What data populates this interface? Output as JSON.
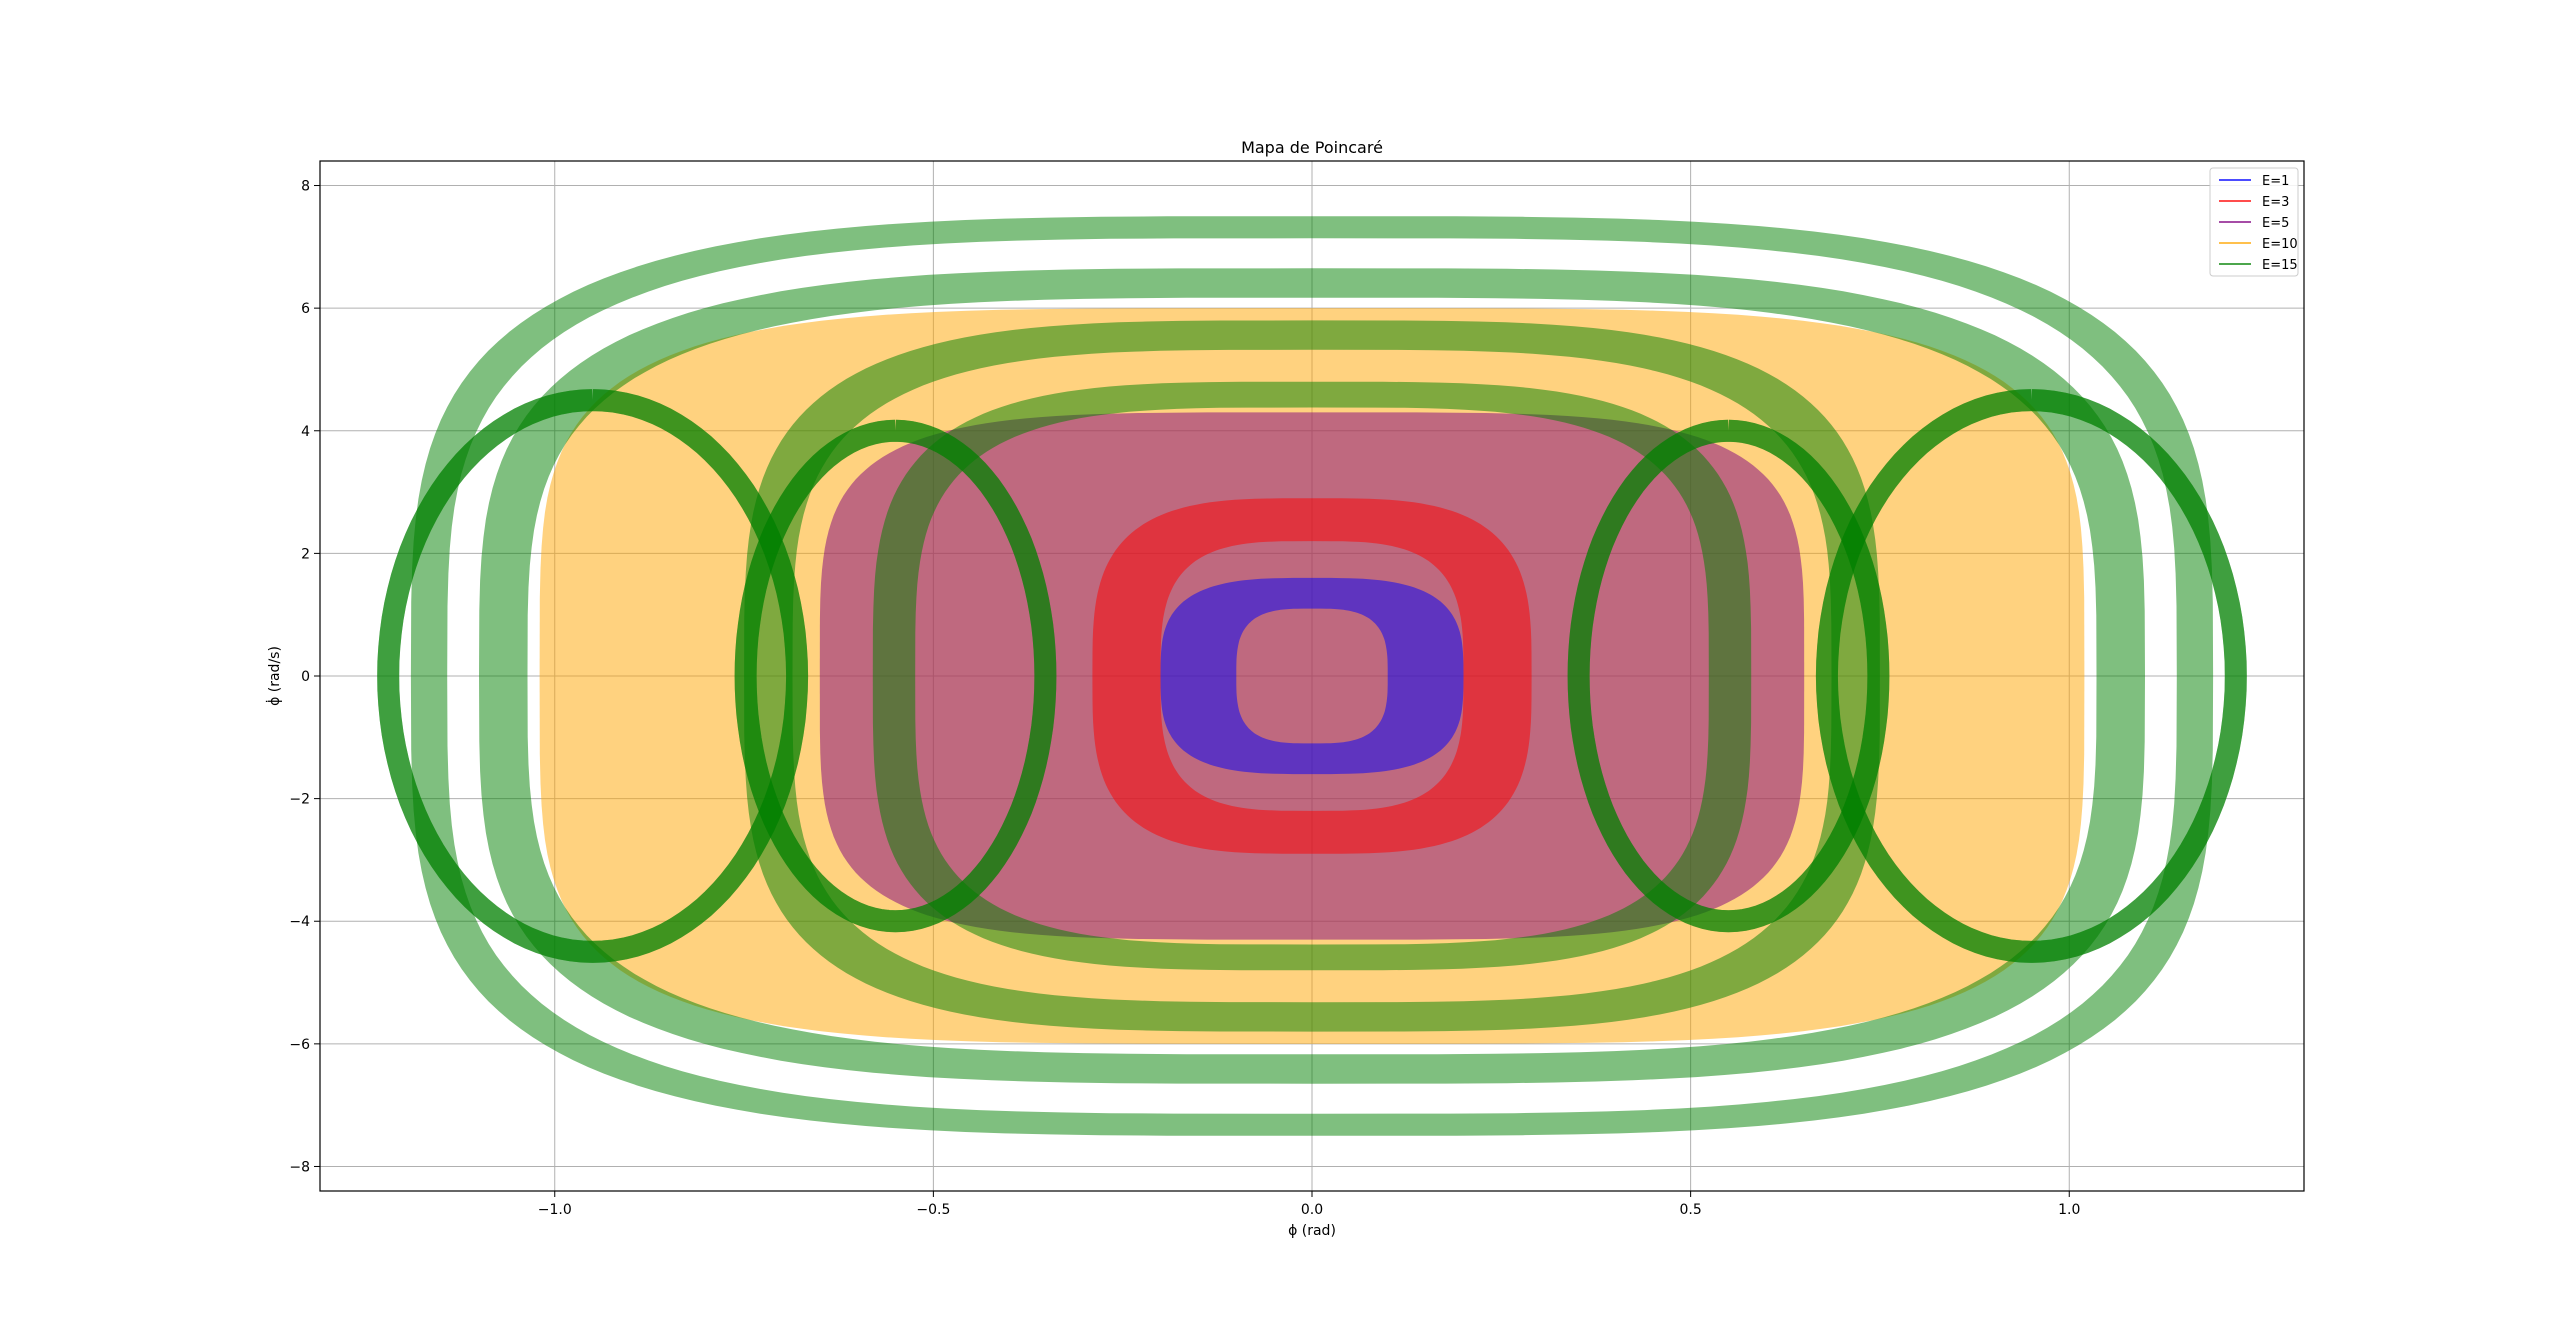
{
  "chart_data": {
    "type": "line",
    "title": "Mapa de Poincaré",
    "xlabel": "ϕ (rad)",
    "ylabel": "ϕ̇ (rad/s)",
    "xlim": [
      -1.31,
      1.31
    ],
    "ylim": [
      -8.4,
      8.4
    ],
    "xticks": [
      -1.0,
      -0.5,
      0.0,
      0.5,
      1.0
    ],
    "xtick_labels": [
      "−1.0",
      "−0.5",
      "0.0",
      "0.5",
      "1.0"
    ],
    "yticks": [
      -8,
      -6,
      -4,
      -2,
      0,
      2,
      4,
      6,
      8
    ],
    "ytick_labels": [
      "−8",
      "−6",
      "−4",
      "−2",
      "0",
      "2",
      "4",
      "6",
      "8"
    ],
    "grid": true,
    "legend_position": "top-right",
    "series": [
      {
        "name": "E=1",
        "color": "#0000ff",
        "alpha": 0.5,
        "band": {
          "inner": {
            "x_max": 0.1,
            "y_max": 1.1
          },
          "outer": {
            "x_max": 0.2,
            "y_max": 1.6
          },
          "squareness": 0.9
        }
      },
      {
        "name": "E=3",
        "color": "#ff0000",
        "alpha": 0.5,
        "band": {
          "inner": {
            "x_max": 0.2,
            "y_max": 2.2
          },
          "outer": {
            "x_max": 0.29,
            "y_max": 2.9
          },
          "squareness": 0.85
        }
      },
      {
        "name": "E=5",
        "color": "#800080",
        "alpha": 0.5,
        "band": {
          "inner": {
            "x_max": 0.0,
            "y_max": 0.0
          },
          "outer": {
            "x_max": 0.65,
            "y_max": 4.3
          },
          "squareness": 0.6
        }
      },
      {
        "name": "E=10",
        "color": "#ffa500",
        "alpha": 0.5,
        "band": {
          "inner": {
            "x_max": 0.0,
            "y_max": 0.0
          },
          "outer": {
            "x_max": 1.02,
            "y_max": 6.0
          },
          "squareness": 0.6
        }
      },
      {
        "name": "E=15",
        "color": "#008000",
        "alpha": 0.5,
        "rings": [
          {
            "x_max": 1.19,
            "y_max": 7.5,
            "width": 0.03
          },
          {
            "x_max": 1.1,
            "y_max": 6.65,
            "width": 0.04
          },
          {
            "x_max": 0.75,
            "y_max": 5.8,
            "width": 0.04
          },
          {
            "x_max": 0.58,
            "y_max": 4.8,
            "width": 0.035
          }
        ],
        "crossing_bands": [
          {
            "x_center": 0.95,
            "y_amp": 4.5,
            "x_amp": 0.3
          },
          {
            "x_center": -0.95,
            "y_amp": 4.5,
            "x_amp": 0.3
          },
          {
            "x_center": 0.55,
            "y_amp": 4.0,
            "x_amp": 0.22
          },
          {
            "x_center": -0.55,
            "y_amp": 4.0,
            "x_amp": 0.22
          }
        ]
      }
    ]
  }
}
